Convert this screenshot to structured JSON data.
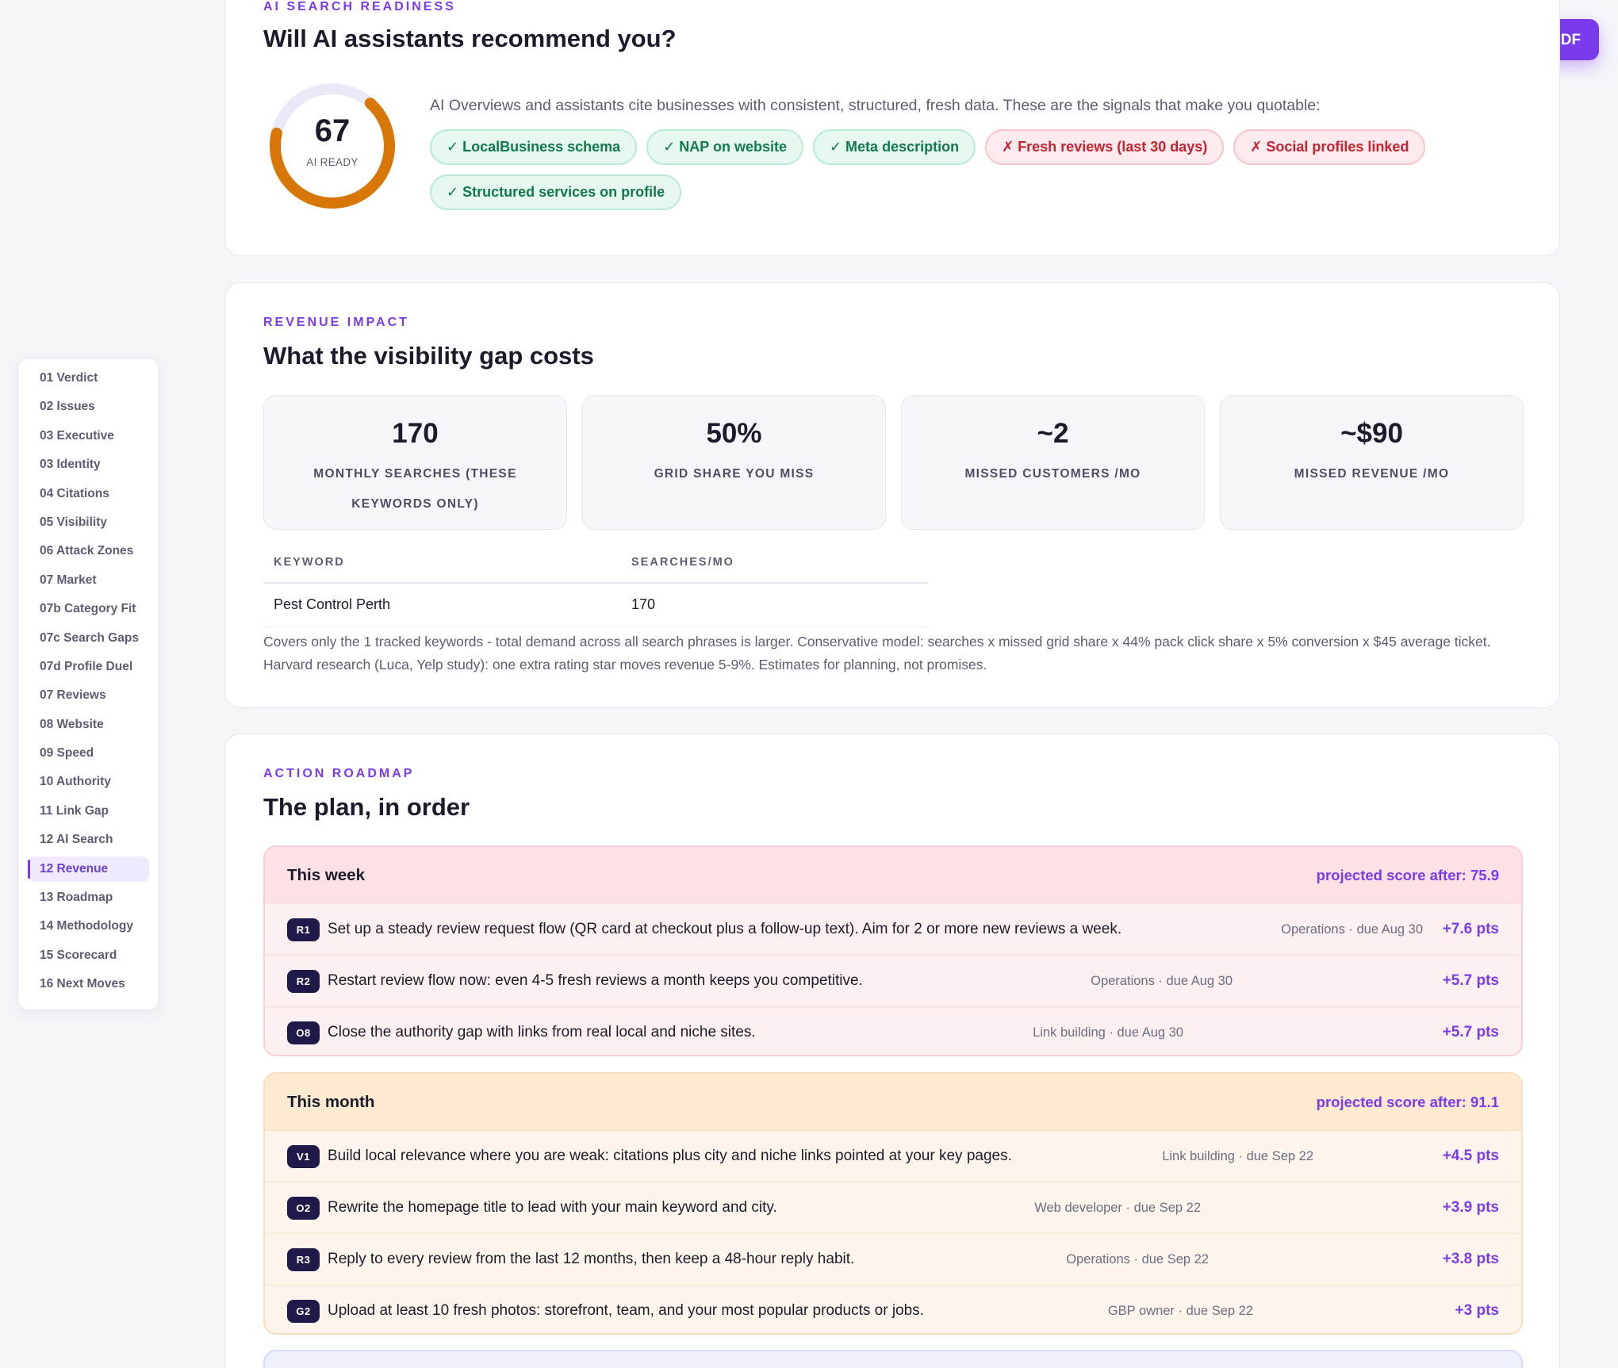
{
  "toolbar": {
    "pdf_label": "⇩ Save as PDF"
  },
  "nav": {
    "items": [
      {
        "label": "01 Verdict"
      },
      {
        "label": "02 Issues"
      },
      {
        "label": "03 Executive"
      },
      {
        "label": "03 Identity"
      },
      {
        "label": "04 Citations"
      },
      {
        "label": "05 Visibility"
      },
      {
        "label": "06 Attack Zones"
      },
      {
        "label": "07 Market"
      },
      {
        "label": "07b Category Fit"
      },
      {
        "label": "07c Search Gaps"
      },
      {
        "label": "07d Profile Duel"
      },
      {
        "label": "07 Reviews"
      },
      {
        "label": "08 Website"
      },
      {
        "label": "09 Speed"
      },
      {
        "label": "10 Authority"
      },
      {
        "label": "11 Link Gap"
      },
      {
        "label": "12 AI Search"
      },
      {
        "label": "12 Revenue"
      },
      {
        "label": "13 Roadmap"
      },
      {
        "label": "14 Methodology"
      },
      {
        "label": "15 Scorecard"
      },
      {
        "label": "16 Next Moves"
      }
    ],
    "active": "12 Revenue"
  },
  "ai": {
    "eyebrow": "AI SEARCH READINESS",
    "title": "Will AI assistants recommend you?",
    "score": "67",
    "score_label": "AI READY",
    "score_fraction": 0.67,
    "ring_color": "#d97706",
    "intro": "AI Overviews and assistants cite businesses with consistent, structured, fresh data. These are the signals that make you quotable:",
    "signals": [
      {
        "label": "✓ LocalBusiness schema",
        "status": "pass"
      },
      {
        "label": "✓ NAP on website",
        "status": "pass"
      },
      {
        "label": "✓ Meta description",
        "status": "pass"
      },
      {
        "label": "✗ Fresh reviews (last 30 days)",
        "status": "fail"
      },
      {
        "label": "✗ Social profiles linked",
        "status": "fail"
      },
      {
        "label": "✓ Structured services on profile",
        "status": "pass"
      }
    ]
  },
  "revenue": {
    "eyebrow": "REVENUE IMPACT",
    "title": "What the visibility gap costs",
    "stats": [
      {
        "value": "170",
        "label": "MONTHLY SEARCHES (THESE KEYWORDS ONLY)"
      },
      {
        "value": "50%",
        "label": "GRID SHARE YOU MISS"
      },
      {
        "value": "~2",
        "label": "MISSED CUSTOMERS /MO"
      },
      {
        "value": "~$90",
        "label": "MISSED REVENUE /MO"
      }
    ],
    "table": {
      "headers": [
        "KEYWORD",
        "SEARCHES/MO"
      ],
      "rows": [
        [
          "Pest Control Perth",
          "170"
        ]
      ]
    },
    "note": "Covers only the 1 tracked keywords - total demand across all search phrases is larger. Conservative model: searches x missed grid share x 44% pack click share x 5% conversion x $45 average ticket. Harvard research (Luca, Yelp study): one extra rating star moves revenue 5-9%. Estimates for planning, not promises."
  },
  "roadmap": {
    "eyebrow": "ACTION ROADMAP",
    "title": "The plan, in order",
    "tiers": [
      {
        "title": "This week",
        "projection": "projected score after: 75.9",
        "tasks": [
          {
            "badge": "R1",
            "text": "Set up a steady review request flow (QR card at checkout plus a follow-up text). Aim for 2 or more new reviews a week.",
            "meta": "Operations · due Aug 30",
            "pts": "+7.6 pts"
          },
          {
            "badge": "R2",
            "text": "Restart review flow now: even 4-5 fresh reviews a month keeps you competitive.",
            "meta": "Operations · due Aug 30",
            "pts": "+5.7 pts"
          },
          {
            "badge": "O8",
            "text": "Close the authority gap with links from real local and niche sites.",
            "meta": "Link building · due Aug 30",
            "pts": "+5.7 pts"
          }
        ]
      },
      {
        "title": "This month",
        "projection": "projected score after: 91.1",
        "tasks": [
          {
            "badge": "V1",
            "text": "Build local relevance where you are weak: citations plus city and niche links pointed at your key pages.",
            "meta": "Link building · due Sep 22",
            "pts": "+4.5 pts"
          },
          {
            "badge": "O2",
            "text": "Rewrite the homepage title to lead with your main keyword and city.",
            "meta": "Web developer · due Sep 22",
            "pts": "+3.9 pts"
          },
          {
            "badge": "R3",
            "text": "Reply to every review from the last 12 months, then keep a 48-hour reply habit.",
            "meta": "Operations · due Sep 22",
            "pts": "+3.8 pts"
          },
          {
            "badge": "G2",
            "text": "Upload at least 10 fresh photos: storefront, team, and your most popular products or jobs.",
            "meta": "GBP owner · due Sep 22",
            "pts": "+3 pts"
          }
        ]
      }
    ]
  }
}
